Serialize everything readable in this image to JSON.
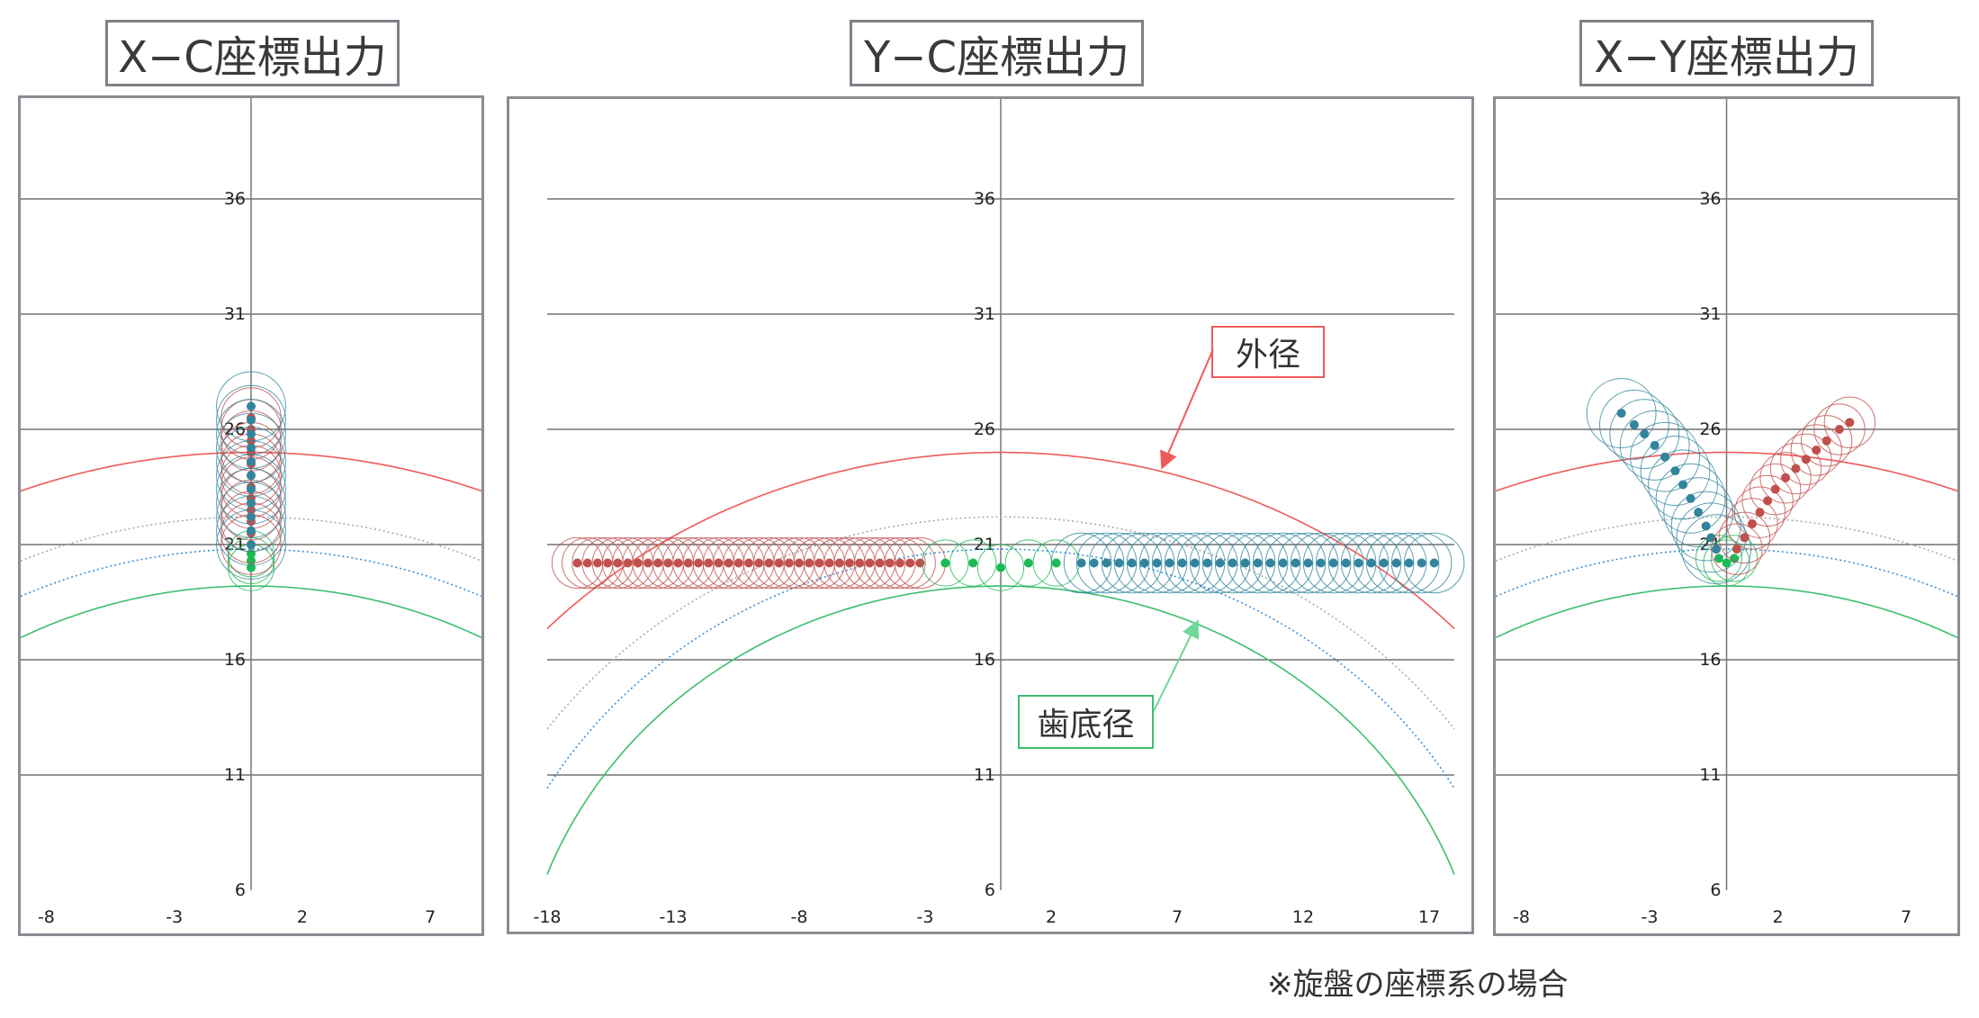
{
  "titles": {
    "xc": "X−C座標出力",
    "yc": "Y−C座標出力",
    "xy": "X−Y座標出力"
  },
  "callouts": {
    "outer": "外径",
    "root": "歯底径"
  },
  "footnote": "※旋盤の座標系の場合",
  "colors": {
    "outer": "#f05a5a",
    "root": "#3cbf6e",
    "blue_dotted": "#3a8fd8",
    "gray_dotted": "#aaaaaa",
    "red_series": "#c0504d",
    "teal_series": "#31849b",
    "green_series": "#1db954",
    "grid": "#555555",
    "axis": "#777777"
  },
  "chart_data": [
    {
      "name": "xc",
      "type": "scatter",
      "xlim": [
        -9,
        9
      ],
      "ylim": [
        6,
        42
      ],
      "xticks": [
        -8,
        -3,
        2,
        7
      ],
      "yticks": [
        6,
        11,
        16,
        21,
        26,
        31,
        36
      ],
      "grid": true,
      "arcs": [
        {
          "role": "outer",
          "r": 25,
          "style": "solid"
        },
        {
          "role": "gray",
          "r": 22.2,
          "style": "dotted"
        },
        {
          "role": "blue",
          "r": 20.8,
          "style": "dotted"
        },
        {
          "role": "root",
          "r": 19.2,
          "style": "solid"
        }
      ],
      "series": [
        {
          "color_key": "green_series",
          "circle_r": 1.0,
          "points": [
            [
              0,
              20.0
            ],
            [
              0,
              20.3
            ],
            [
              0,
              20.6
            ]
          ]
        },
        {
          "color_key": "red_series",
          "circle_r": 1.3,
          "points": [
            [
              0,
              21
            ],
            [
              0,
              21.5
            ],
            [
              0,
              22
            ],
            [
              0,
              22.5
            ],
            [
              0,
              23
            ],
            [
              0,
              23.5
            ],
            [
              0,
              24
            ],
            [
              0,
              24.5
            ],
            [
              0,
              25
            ],
            [
              0,
              25.5
            ],
            [
              0,
              26
            ],
            [
              0,
              26.5
            ]
          ]
        },
        {
          "color_key": "teal_series",
          "circle_r": 1.5,
          "points": [
            [
              0,
              21
            ],
            [
              0,
              21.6
            ],
            [
              0,
              22.2
            ],
            [
              0,
              22.8
            ],
            [
              0,
              23.4
            ],
            [
              0,
              24
            ],
            [
              0,
              24.6
            ],
            [
              0,
              25.2
            ],
            [
              0,
              25.8
            ],
            [
              0,
              26.4
            ],
            [
              0,
              27
            ]
          ]
        }
      ]
    },
    {
      "name": "yc",
      "type": "scatter",
      "xlim": [
        -18,
        18
      ],
      "ylim": [
        6,
        42
      ],
      "xticks": [
        -18,
        -13,
        -8,
        -3,
        2,
        7,
        12,
        17
      ],
      "yticks": [
        6,
        11,
        16,
        21,
        26,
        31,
        36
      ],
      "grid": true,
      "arcs": [
        {
          "role": "outer",
          "r": 25,
          "style": "solid"
        },
        {
          "role": "gray",
          "r": 22.2,
          "style": "dotted"
        },
        {
          "role": "blue",
          "r": 20.8,
          "style": "dotted"
        },
        {
          "role": "root",
          "r": 19.2,
          "style": "solid"
        }
      ],
      "series": [
        {
          "color_key": "red_series",
          "circle_r": 1.1,
          "points": [
            [
              -16.8,
              20.2
            ],
            [
              -16.4,
              20.2
            ],
            [
              -16.0,
              20.2
            ],
            [
              -15.6,
              20.2
            ],
            [
              -15.2,
              20.2
            ],
            [
              -14.8,
              20.2
            ],
            [
              -14.4,
              20.2
            ],
            [
              -14.0,
              20.2
            ],
            [
              -13.6,
              20.2
            ],
            [
              -13.2,
              20.2
            ],
            [
              -12.8,
              20.2
            ],
            [
              -12.4,
              20.2
            ],
            [
              -12.0,
              20.2
            ],
            [
              -11.6,
              20.2
            ],
            [
              -11.2,
              20.2
            ],
            [
              -10.8,
              20.2
            ],
            [
              -10.4,
              20.2
            ],
            [
              -10.0,
              20.2
            ],
            [
              -9.6,
              20.2
            ],
            [
              -9.2,
              20.2
            ],
            [
              -8.8,
              20.2
            ],
            [
              -8.4,
              20.2
            ],
            [
              -8.0,
              20.2
            ],
            [
              -7.6,
              20.2
            ],
            [
              -7.2,
              20.2
            ],
            [
              -6.8,
              20.2
            ],
            [
              -6.4,
              20.2
            ],
            [
              -6.0,
              20.2
            ],
            [
              -5.6,
              20.2
            ],
            [
              -5.2,
              20.2
            ],
            [
              -4.8,
              20.2
            ],
            [
              -4.4,
              20.2
            ],
            [
              -4.0,
              20.2
            ],
            [
              -3.6,
              20.2
            ],
            [
              -3.2,
              20.2
            ]
          ]
        },
        {
          "color_key": "green_series",
          "circle_r": 1.0,
          "points": [
            [
              -2.2,
              20.2
            ],
            [
              -1.1,
              20.2
            ],
            [
              0,
              20.0
            ],
            [
              1.1,
              20.2
            ],
            [
              2.2,
              20.2
            ]
          ]
        },
        {
          "color_key": "teal_series",
          "circle_r": 1.3,
          "points": [
            [
              3.2,
              20.2
            ],
            [
              3.7,
              20.2
            ],
            [
              4.2,
              20.2
            ],
            [
              4.7,
              20.2
            ],
            [
              5.2,
              20.2
            ],
            [
              5.7,
              20.2
            ],
            [
              6.2,
              20.2
            ],
            [
              6.7,
              20.2
            ],
            [
              7.2,
              20.2
            ],
            [
              7.7,
              20.2
            ],
            [
              8.2,
              20.2
            ],
            [
              8.7,
              20.2
            ],
            [
              9.2,
              20.2
            ],
            [
              9.7,
              20.2
            ],
            [
              10.2,
              20.2
            ],
            [
              10.7,
              20.2
            ],
            [
              11.2,
              20.2
            ],
            [
              11.7,
              20.2
            ],
            [
              12.2,
              20.2
            ],
            [
              12.7,
              20.2
            ],
            [
              13.2,
              20.2
            ],
            [
              13.7,
              20.2
            ],
            [
              14.2,
              20.2
            ],
            [
              14.7,
              20.2
            ],
            [
              15.2,
              20.2
            ],
            [
              15.7,
              20.2
            ],
            [
              16.2,
              20.2
            ],
            [
              16.7,
              20.2
            ],
            [
              17.2,
              20.2
            ]
          ]
        }
      ]
    },
    {
      "name": "xy",
      "type": "scatter",
      "xlim": [
        -9,
        9
      ],
      "ylim": [
        6,
        42
      ],
      "xticks": [
        -8,
        -3,
        2,
        7
      ],
      "yticks": [
        6,
        11,
        16,
        21,
        26,
        31,
        36
      ],
      "grid": true,
      "arcs": [
        {
          "role": "outer",
          "r": 25,
          "style": "solid"
        },
        {
          "role": "gray",
          "r": 22.2,
          "style": "dotted"
        },
        {
          "role": "blue",
          "r": 20.8,
          "style": "dotted"
        },
        {
          "role": "root",
          "r": 19.2,
          "style": "solid"
        }
      ],
      "series": [
        {
          "color_key": "green_series",
          "circle_r": 1.0,
          "points": [
            [
              -0.3,
              20.4
            ],
            [
              0,
              20.2
            ],
            [
              0.3,
              20.4
            ]
          ]
        },
        {
          "color_key": "teal_series",
          "circle_r": 1.5,
          "points": [
            [
              -4.1,
              26.7
            ],
            [
              -3.6,
              26.2
            ],
            [
              -3.2,
              25.8
            ],
            [
              -2.8,
              25.3
            ],
            [
              -2.4,
              24.8
            ],
            [
              -2.0,
              24.2
            ],
            [
              -1.7,
              23.6
            ],
            [
              -1.4,
              23.0
            ],
            [
              -1.1,
              22.4
            ],
            [
              -0.8,
              21.8
            ],
            [
              -0.6,
              21.3
            ],
            [
              -0.4,
              20.8
            ]
          ]
        },
        {
          "color_key": "red_series",
          "circle_r": 1.1,
          "points": [
            [
              0.4,
              20.8
            ],
            [
              0.7,
              21.3
            ],
            [
              1.0,
              21.9
            ],
            [
              1.3,
              22.4
            ],
            [
              1.6,
              22.9
            ],
            [
              1.9,
              23.4
            ],
            [
              2.3,
              23.9
            ],
            [
              2.7,
              24.3
            ],
            [
              3.1,
              24.7
            ],
            [
              3.5,
              25.1
            ],
            [
              3.9,
              25.5
            ],
            [
              4.4,
              26.0
            ],
            [
              4.8,
              26.3
            ]
          ]
        }
      ]
    }
  ]
}
